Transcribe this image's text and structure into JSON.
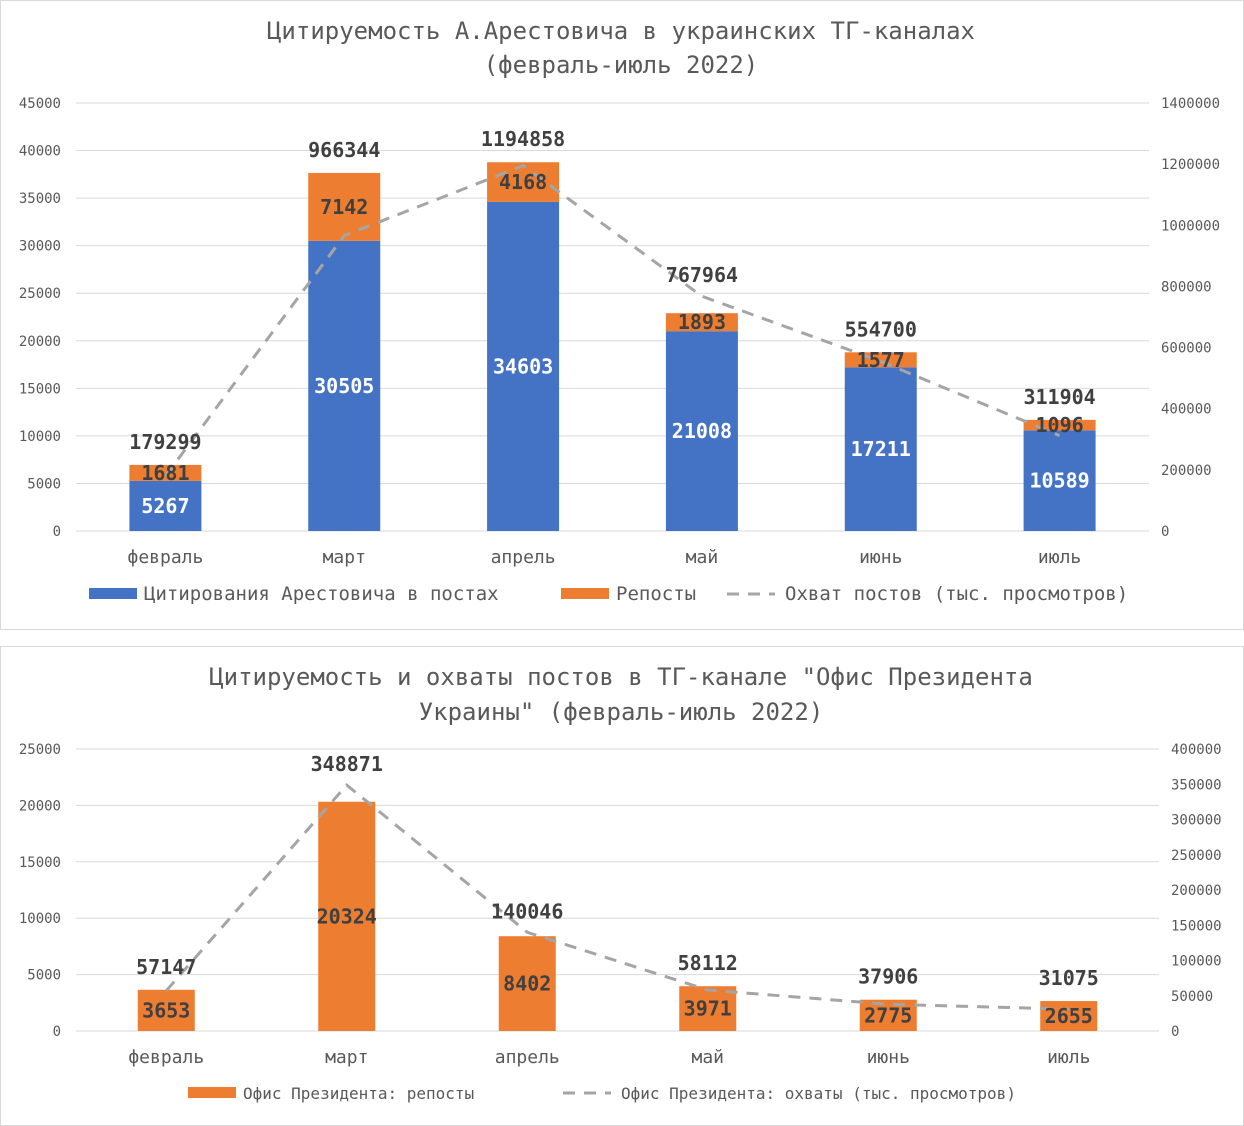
{
  "chart_data": [
    {
      "type": "bar",
      "stacked": true,
      "title": "Цитируемость А.Арестовича в украинских ТГ-каналах (февраль-июль 2022)",
      "title_lines": [
        "Цитируемость А.Арестовича в украинских ТГ-каналах",
        "(февраль-июль 2022)"
      ],
      "categories": [
        "февраль",
        "март",
        "апрель",
        "май",
        "июнь",
        "июль"
      ],
      "y_left": {
        "min": 0,
        "max": 45000,
        "step": 5000,
        "ticks": [
          "0",
          "5000",
          "10000",
          "15000",
          "20000",
          "25000",
          "30000",
          "35000",
          "40000",
          "45000"
        ]
      },
      "y_right": {
        "min": 0,
        "max": 1400000,
        "step": 200000,
        "ticks": [
          "0",
          "200000",
          "400000",
          "600000",
          "800000",
          "1000000",
          "1200000",
          "1400000"
        ]
      },
      "grid": true,
      "legend_position": "bottom",
      "series": [
        {
          "name": "Цитирования Арестовича в постах",
          "kind": "bar",
          "axis": "left",
          "color": "#4472c4",
          "values": [
            5267,
            30505,
            34603,
            21008,
            17211,
            10589
          ],
          "labels": [
            "5267",
            "30505",
            "34603",
            "21008",
            "17211",
            "10589"
          ]
        },
        {
          "name": "Репосты",
          "kind": "bar",
          "axis": "left",
          "color": "#ed7d31",
          "values": [
            1681,
            7142,
            4168,
            1893,
            1577,
            1096
          ],
          "labels": [
            "1681",
            "7142",
            "4168",
            "1893",
            "1577",
            "1096"
          ]
        },
        {
          "name": "Охват постов (тыс. просмотров)",
          "kind": "line",
          "style": "dashed",
          "axis": "right",
          "color": "#a5a5a5",
          "values": [
            179299,
            966344,
            1194858,
            767964,
            554700,
            311904
          ],
          "labels": [
            "179299",
            "966344",
            "1194858",
            "767964",
            "554700",
            "311904"
          ]
        }
      ]
    },
    {
      "type": "bar",
      "title": "Цитируемость и охваты постов в ТГ-канале \"Офис Президента Украины\" (февраль-июль 2022)",
      "title_lines": [
        "Цитируемость и охваты постов в ТГ-канале \"Офис Президента",
        "Украины\" (февраль-июль 2022)"
      ],
      "categories": [
        "февраль",
        "март",
        "апрель",
        "май",
        "июнь",
        "июль"
      ],
      "y_left": {
        "min": 0,
        "max": 25000,
        "step": 5000,
        "ticks": [
          "0",
          "5000",
          "10000",
          "15000",
          "20000",
          "25000"
        ]
      },
      "y_right": {
        "min": 0,
        "max": 400000,
        "step": 50000,
        "ticks": [
          "0",
          "50000",
          "100000",
          "150000",
          "200000",
          "250000",
          "300000",
          "350000",
          "400000"
        ]
      },
      "grid": true,
      "legend_position": "bottom",
      "series": [
        {
          "name": "Офис Президента: репосты",
          "kind": "bar",
          "axis": "left",
          "color": "#ed7d31",
          "values": [
            3653,
            20324,
            8402,
            3971,
            2775,
            2655
          ],
          "labels": [
            "3653",
            "20324",
            "8402",
            "3971",
            "2775",
            "2655"
          ]
        },
        {
          "name": "Офис Президента: охваты (тыс. просмотров)",
          "kind": "line",
          "style": "dashed",
          "axis": "right",
          "color": "#a5a5a5",
          "values": [
            57147,
            348871,
            140046,
            58112,
            37906,
            31075
          ],
          "labels": [
            "57147",
            "348871",
            "140046",
            "58112",
            "37906",
            "31075"
          ]
        }
      ]
    }
  ]
}
